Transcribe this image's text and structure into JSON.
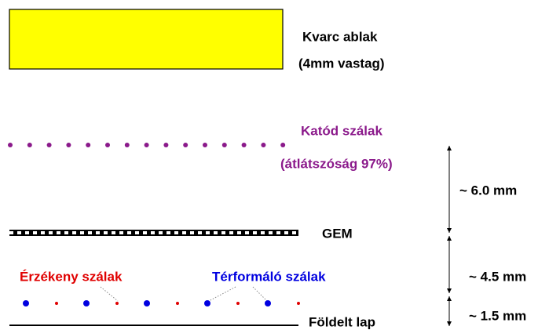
{
  "window": {
    "label": "Kvarc ablak",
    "thickness": "(4mm vastag)"
  },
  "cathode": {
    "label": "Katód szálak",
    "note": "(átlátszóság 97%)"
  },
  "gem": {
    "label": "GEM"
  },
  "sense_wires": {
    "label": "Érzékeny szálak"
  },
  "field_wires": {
    "label": "Térformáló szálak"
  },
  "ground": {
    "label": "Földelt lap"
  },
  "dimensions": [
    "~ 6.0 mm",
    "~ 4.5 mm",
    "~ 1.5 mm"
  ]
}
